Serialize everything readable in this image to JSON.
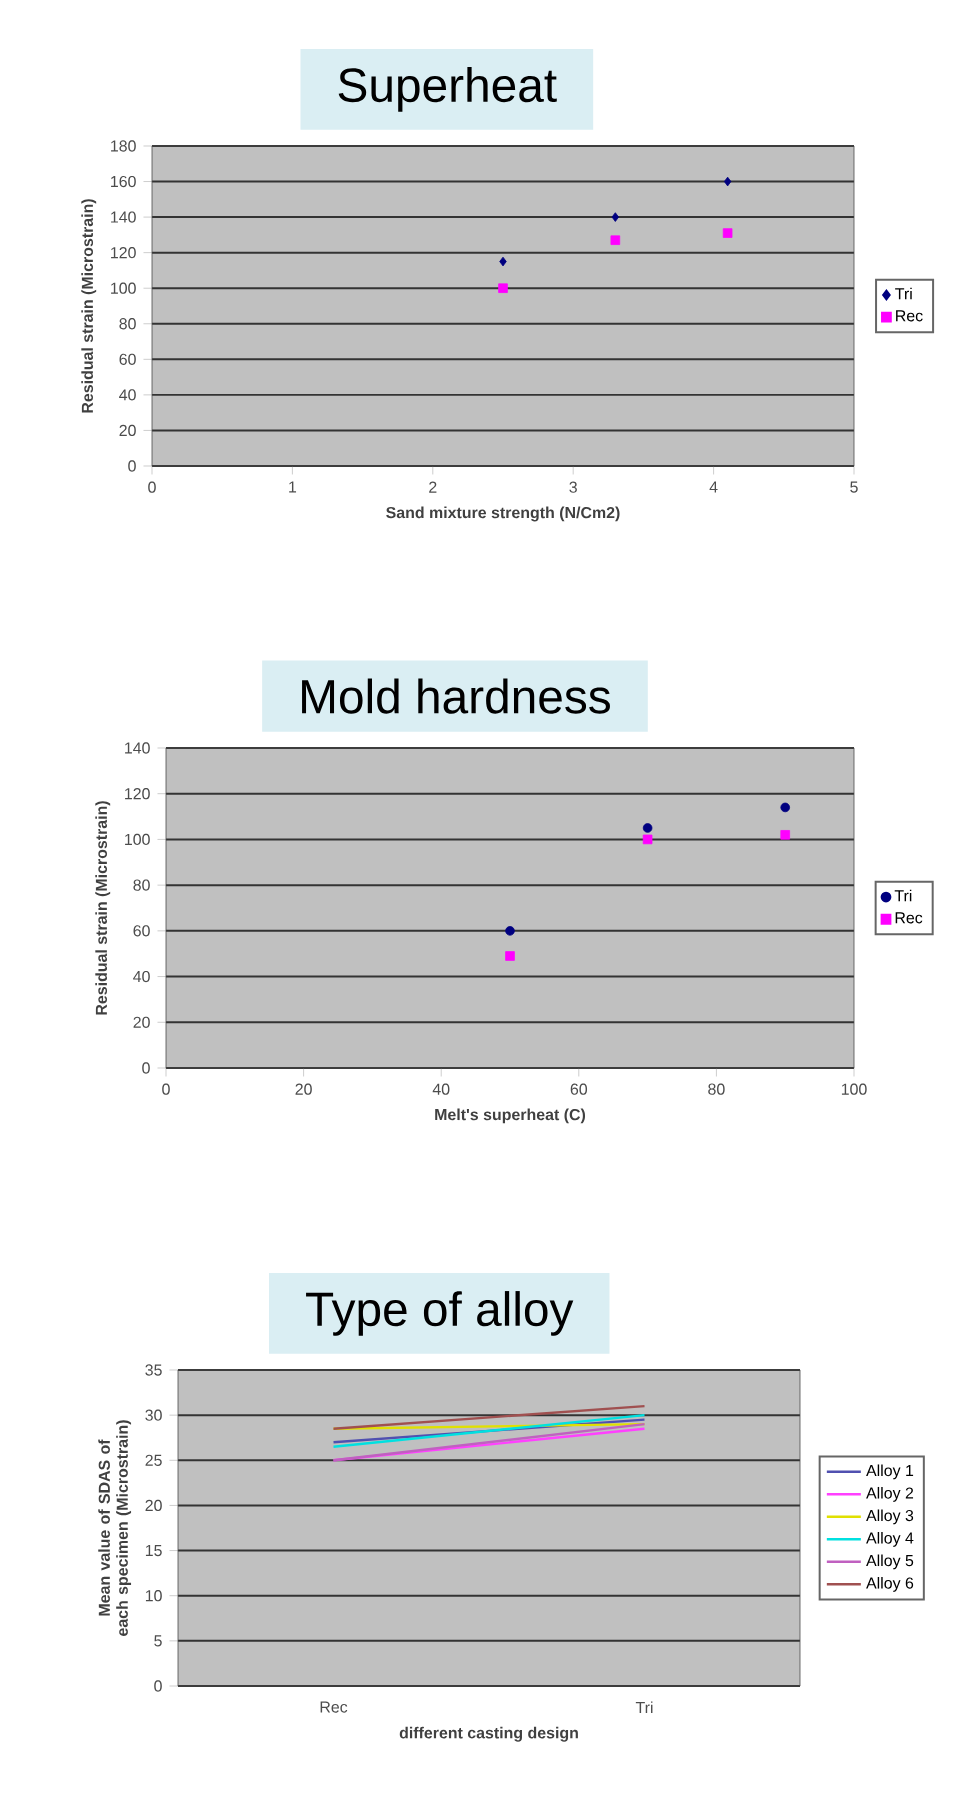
{
  "chart_data": [
    {
      "type": "scatter",
      "title": "Superheat",
      "xlabel": "Sand mixture strength (N/Cm2)",
      "ylabel": "Residual strain (Microstrain)",
      "xlim": [
        0,
        5
      ],
      "xticks": [
        0,
        1,
        2,
        3,
        4,
        5
      ],
      "ylim": [
        0,
        180
      ],
      "yticks": [
        0,
        20,
        40,
        60,
        80,
        100,
        120,
        140,
        160,
        180
      ],
      "grid": "y",
      "legend": "right",
      "series": [
        {
          "name": "Tri",
          "color": "#000080",
          "marker": "diamond",
          "x": [
            2.5,
            3.3,
            4.1
          ],
          "values": [
            115,
            140,
            160
          ]
        },
        {
          "name": "Rec",
          "color": "#ff00ff",
          "marker": "square",
          "x": [
            2.5,
            3.3,
            4.1
          ],
          "values": [
            100,
            127,
            131
          ]
        }
      ]
    },
    {
      "type": "scatter",
      "title": "Mold hardness",
      "xlabel": "Melt's superheat (C)",
      "ylabel": "Residual strain (Microstrain)",
      "xlim": [
        0,
        100
      ],
      "xticks": [
        0,
        20,
        40,
        60,
        80,
        100
      ],
      "ylim": [
        0,
        140
      ],
      "yticks": [
        0,
        20,
        40,
        60,
        80,
        100,
        120,
        140
      ],
      "grid": "y",
      "legend": "right",
      "series": [
        {
          "name": "Tri",
          "color": "#000080",
          "marker": "circle",
          "x": [
            50,
            70,
            90
          ],
          "values": [
            60,
            105,
            114
          ]
        },
        {
          "name": "Rec",
          "color": "#ff00ff",
          "marker": "square",
          "x": [
            50,
            70,
            90
          ],
          "values": [
            49,
            100,
            102
          ]
        }
      ]
    },
    {
      "type": "line",
      "title": "Type of alloy",
      "xlabel": "different casting design",
      "ylabel": "Mean value of SDAS of each specimen (Microstrain)",
      "categories": [
        "Rec",
        "Tri"
      ],
      "ylim": [
        0,
        35
      ],
      "yticks": [
        0,
        5,
        10,
        15,
        20,
        25,
        30,
        35
      ],
      "grid": "y",
      "legend": "right",
      "series": [
        {
          "name": "Alloy 1",
          "color": "#5050b0",
          "values": [
            27,
            29.5
          ]
        },
        {
          "name": "Alloy 2",
          "color": "#ff40ff",
          "values": [
            25,
            28.5
          ]
        },
        {
          "name": "Alloy 3",
          "color": "#e0e000",
          "values": [
            28.5,
            29
          ]
        },
        {
          "name": "Alloy 4",
          "color": "#00e0e0",
          "values": [
            26.5,
            30
          ]
        },
        {
          "name": "Alloy 5",
          "color": "#c060c0",
          "values": [
            25,
            29
          ]
        },
        {
          "name": "Alloy 6",
          "color": "#a05050",
          "values": [
            28.5,
            31
          ]
        }
      ]
    }
  ]
}
